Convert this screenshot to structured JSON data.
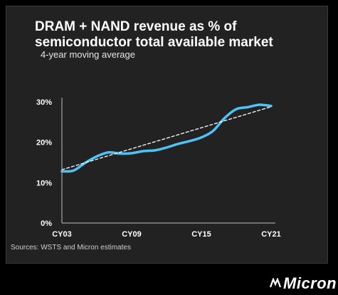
{
  "chart_data": {
    "type": "line",
    "title": "DRAM + NAND revenue as % of semiconductor total available market",
    "subtitle": "4-year moving average",
    "x_ticks": [
      "CY03",
      "CY09",
      "CY15",
      "CY21"
    ],
    "y_ticks": [
      "0%",
      "10%",
      "20%",
      "30%"
    ],
    "ylim": [
      0,
      30
    ],
    "xlim": [
      2003,
      2021
    ],
    "series": [
      {
        "color": "#4fc3f7",
        "points": [
          [
            2003,
            12.8
          ],
          [
            2004,
            13.0
          ],
          [
            2005,
            14.9
          ],
          [
            2006,
            16.5
          ],
          [
            2007,
            17.5
          ],
          [
            2008,
            17.2
          ],
          [
            2009,
            17.3
          ],
          [
            2010,
            17.8
          ],
          [
            2011,
            18.0
          ],
          [
            2012,
            18.7
          ],
          [
            2013,
            19.6
          ],
          [
            2014,
            20.3
          ],
          [
            2015,
            21.2
          ],
          [
            2016,
            22.8
          ],
          [
            2017,
            26.0
          ],
          [
            2018,
            28.2
          ],
          [
            2019,
            28.7
          ],
          [
            2020,
            29.3
          ],
          [
            2021,
            29.0
          ]
        ]
      },
      {
        "style": "dashed",
        "color": "#ffffff",
        "points": [
          [
            2003,
            13.2
          ],
          [
            2021,
            28.8
          ]
        ]
      }
    ],
    "grid": false
  },
  "source_text": "Sources: WSTS and Micron estimates",
  "brand": "Micron"
}
